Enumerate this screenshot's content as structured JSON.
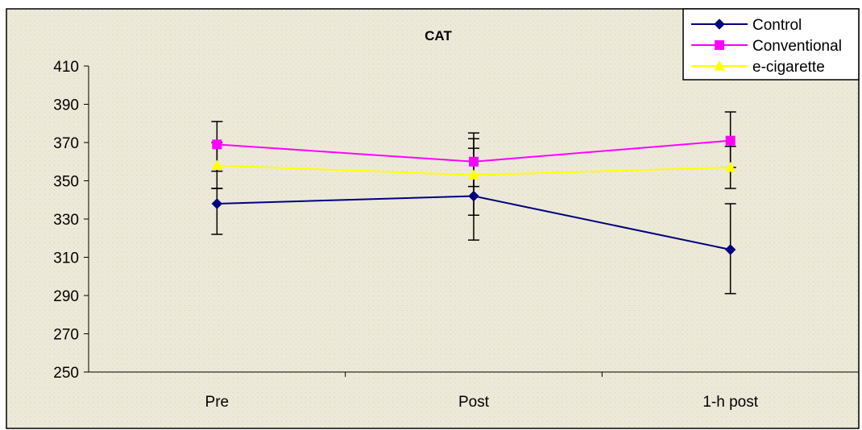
{
  "chart_data": {
    "type": "line",
    "title": "CAT",
    "categories": [
      "Pre",
      "Post",
      "1-h post"
    ],
    "ylim": [
      250,
      410
    ],
    "yticks": [
      250,
      270,
      290,
      310,
      330,
      350,
      370,
      390,
      410
    ],
    "xlabel": "",
    "ylabel": "",
    "grid": false,
    "legend_position": "top-right",
    "background_color": "#ece9d8",
    "series": [
      {
        "name": "Control",
        "color": "#000080",
        "marker": "diamond",
        "values": [
          338,
          342,
          314
        ],
        "error_low": [
          322,
          319,
          291
        ],
        "error_high": [
          346,
          367,
          338
        ]
      },
      {
        "name": "Conventional",
        "color": "#ff00ff",
        "marker": "square",
        "values": [
          369,
          360,
          371
        ],
        "error_low": [
          355,
          347,
          357
        ],
        "error_high": [
          381,
          375,
          386
        ]
      },
      {
        "name": "e-cigarette",
        "color": "#ffff00",
        "marker": "triangle",
        "values": [
          358,
          353,
          357
        ],
        "error_low": [
          346,
          332,
          346
        ],
        "error_high": [
          370,
          372,
          368
        ]
      }
    ]
  }
}
